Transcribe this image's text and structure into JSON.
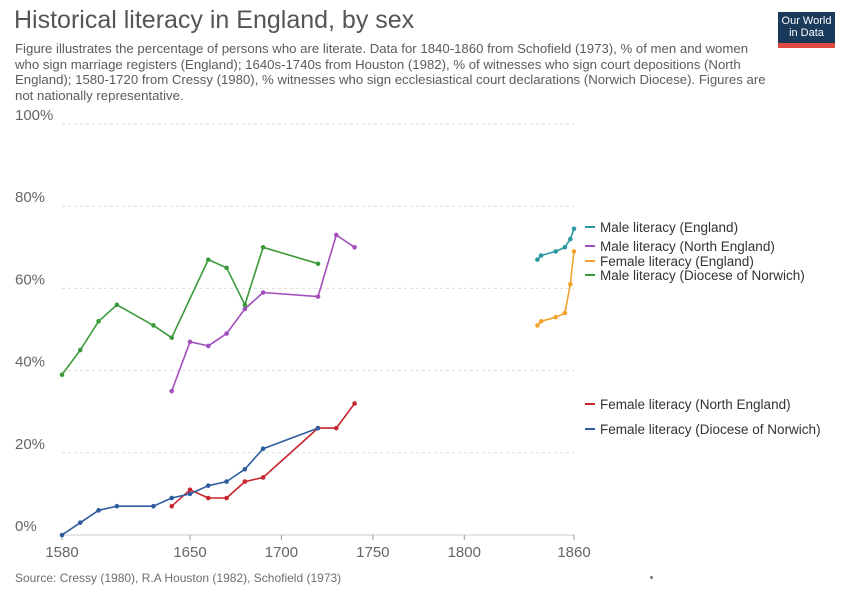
{
  "header": {
    "title": "Historical literacy in England, by sex",
    "subtitle": "Figure illustrates the percentage of persons who are literate. Data for 1840-1860 from Schofield (1973), % of men and women who sign marriage registers (England); 1640s-1740s from Houston (1982), % of witnesses who sign court depositions (North England); 1580-1720 from Cressy (1980), % witnesses who sign ecclesiastical court declarations (Norwich Diocese). Figures are not nationally representative.",
    "logo_line1": "Our World",
    "logo_line2": "in Data"
  },
  "footer": {
    "source": "Source: Cressy (1980), R.A Houston (1982), Schofield (1973)"
  },
  "chart_data": {
    "type": "line",
    "xlim": [
      1580,
      1860
    ],
    "ylim": [
      0,
      100
    ],
    "x_ticks": [
      1580,
      1650,
      1700,
      1750,
      1800,
      1860
    ],
    "y_ticks": [
      0,
      20,
      40,
      60,
      80,
      100
    ],
    "y_tick_labels": [
      "0%",
      "20%",
      "40%",
      "60%",
      "80%",
      "100%"
    ],
    "grid": true,
    "legend_position": "right",
    "series": [
      {
        "name": "Male literacy (England)",
        "color": "#2a9aa2",
        "x": [
          1840,
          1842,
          1850,
          1855,
          1858,
          1860
        ],
        "y": [
          67,
          68,
          69,
          70,
          72,
          74.5
        ]
      },
      {
        "name": "Male literacy (North England)",
        "color": "#a34fbd",
        "x": [
          1640,
          1650,
          1660,
          1670,
          1680,
          1690,
          1720,
          1730,
          1740
        ],
        "y": [
          35,
          47,
          46,
          49,
          55,
          59,
          58,
          73,
          70
        ]
      },
      {
        "name": "Female literacy (England)",
        "color": "#f2a22c",
        "x": [
          1840,
          1842,
          1850,
          1855,
          1858,
          1860
        ],
        "y": [
          51,
          52,
          53,
          54,
          61,
          69
        ]
      },
      {
        "name": "Male literacy (Diocese of Norwich)",
        "color": "#3a9a3a",
        "x": [
          1580,
          1590,
          1600,
          1610,
          1630,
          1640,
          1660,
          1670,
          1680,
          1690,
          1720
        ],
        "y": [
          39,
          45,
          52,
          56,
          51,
          48,
          67,
          65,
          56,
          70,
          66
        ]
      },
      {
        "name": "Female literacy (North England)",
        "color": "#c8262f",
        "x": [
          1640,
          1650,
          1660,
          1670,
          1680,
          1690,
          1720,
          1730,
          1740
        ],
        "y": [
          7,
          11,
          9,
          9,
          13,
          14,
          26,
          26,
          32
        ]
      },
      {
        "name": "Female literacy (Diocese of Norwich)",
        "color": "#2e5c9e",
        "x": [
          1580,
          1590,
          1600,
          1610,
          1630,
          1640,
          1650,
          1660,
          1670,
          1680,
          1690,
          1720
        ],
        "y": [
          0,
          3,
          6,
          7,
          7,
          9,
          10,
          12,
          13,
          16,
          21,
          26
        ]
      }
    ]
  }
}
